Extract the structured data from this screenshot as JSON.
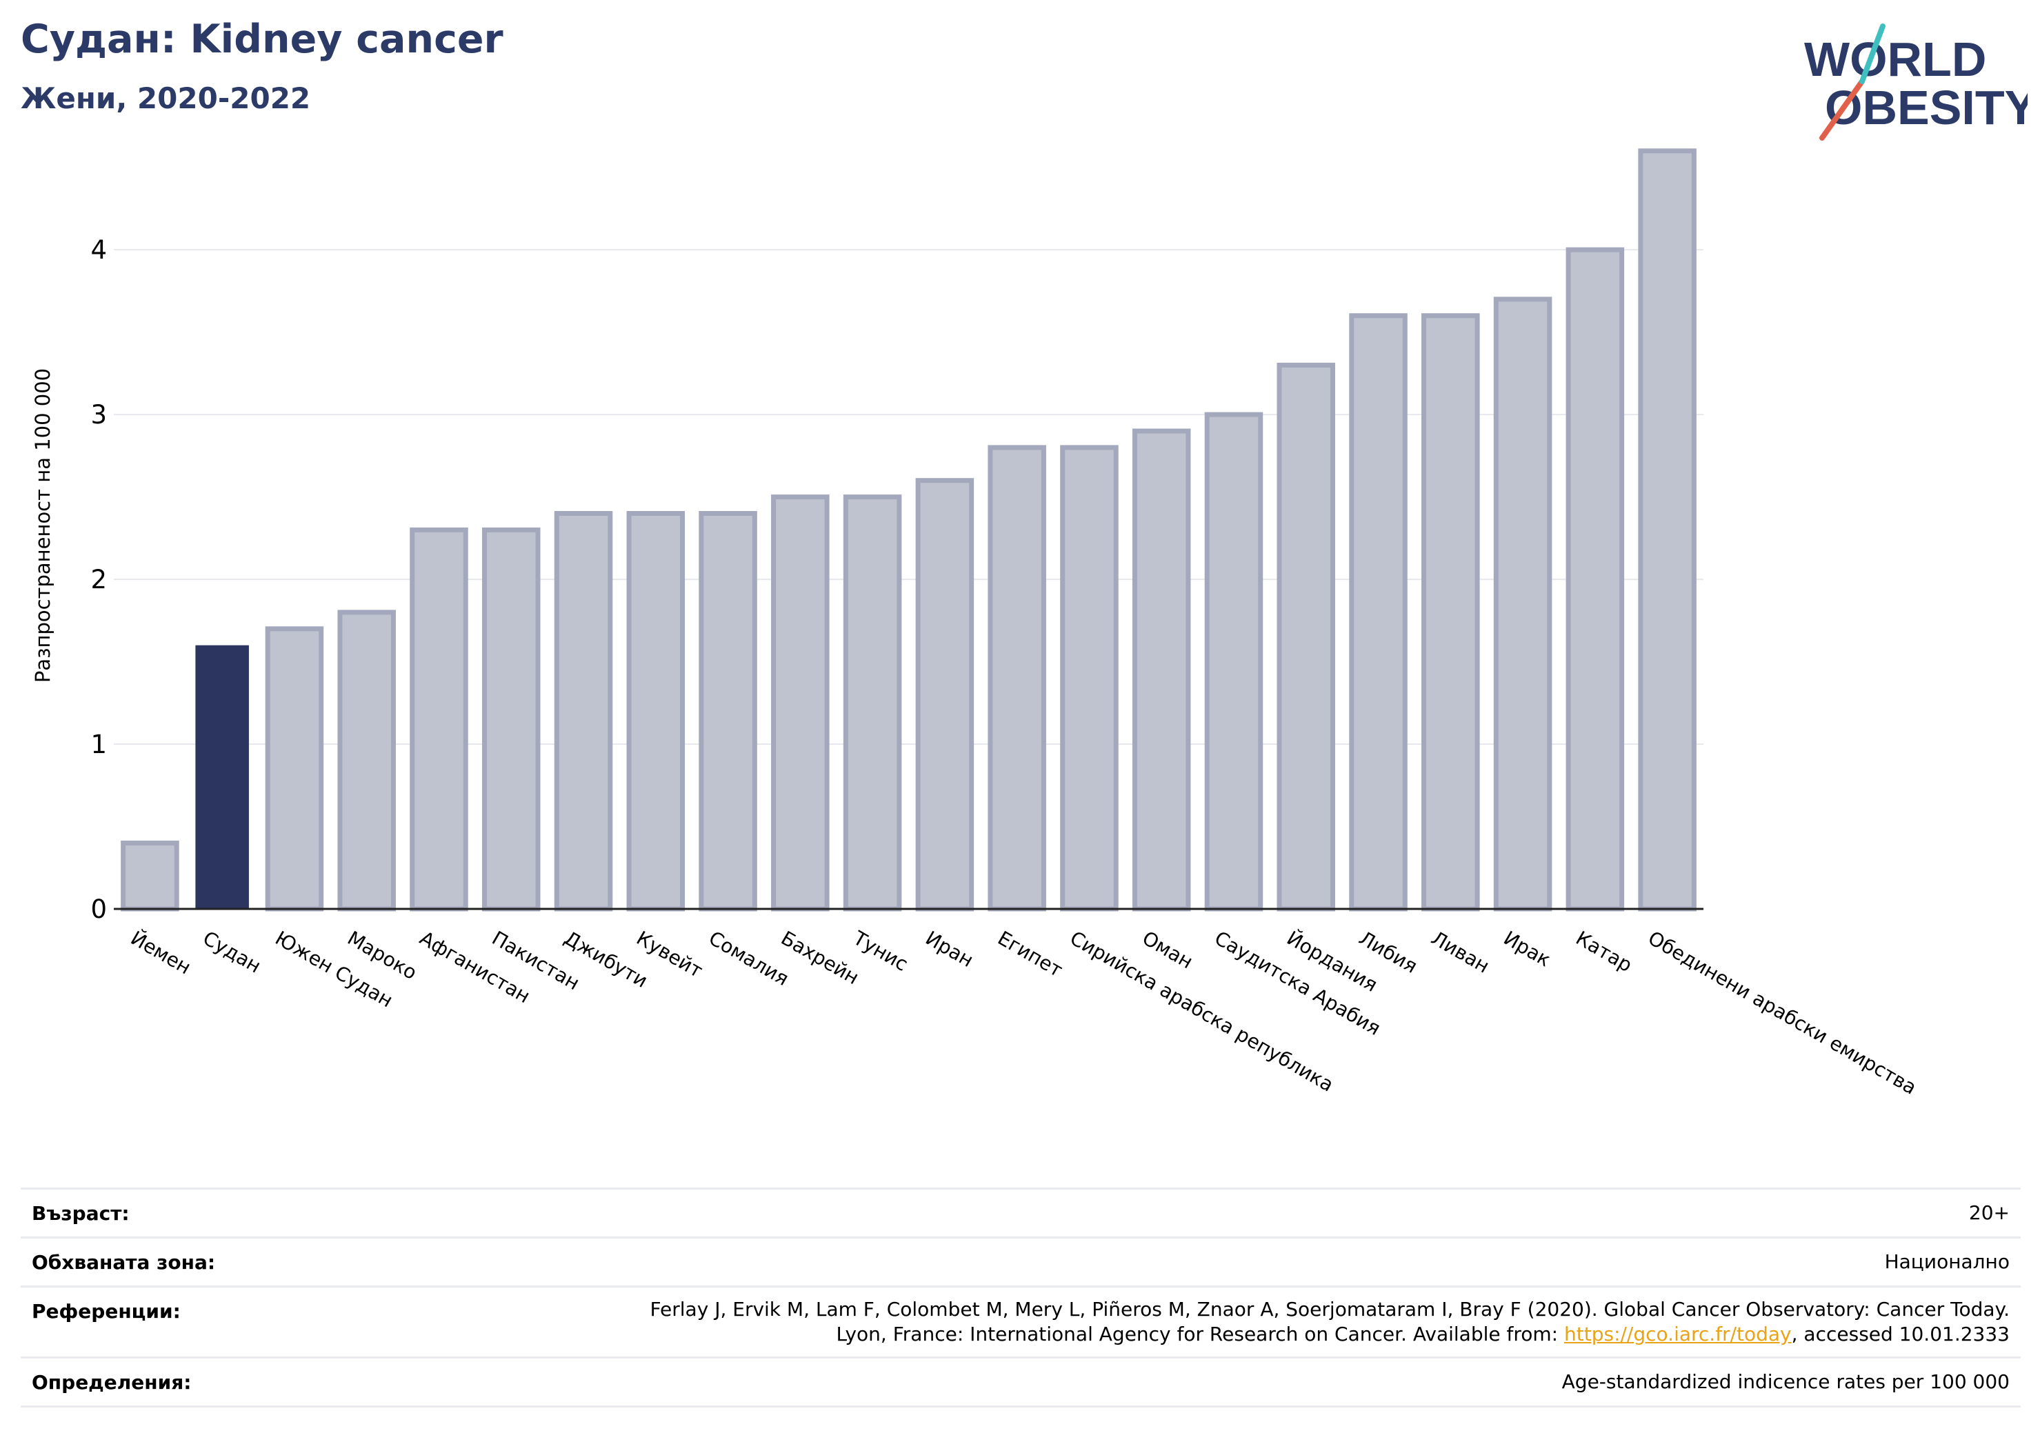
{
  "header": {
    "title": "Судан: Kidney cancer",
    "subtitle": "Жени, 2020-2022"
  },
  "logo": {
    "line1": "WORLD",
    "line2": "OBESITY",
    "colors": {
      "text": "#2b3a67",
      "slash_red": "#e0604a",
      "slash_teal": "#3fbfbf"
    }
  },
  "chart_data": {
    "type": "bar",
    "ylabel": "Разпространеност  на 100 000",
    "ylim": [
      0,
      4.8
    ],
    "yticks": [
      0,
      1,
      2,
      3,
      4
    ],
    "grid": true,
    "highlight_color": "#2b3560",
    "bar_color": "#bfc2cf",
    "bar_edge_color": "#a3a8bc",
    "categories": [
      "Йемен",
      "Судан",
      "Южен Судан",
      "Мароко",
      "Афганистан",
      "Пакистан",
      "Джибути",
      "Кувейт",
      "Сомалия",
      "Бахрейн",
      "Тунис",
      "Иран",
      "Египет",
      "Сирийска арабска република",
      "Оман",
      "Саудитска Арабия",
      "Йордания",
      "Либия",
      "Ливан",
      "Ирак",
      "Катар",
      "Обединени арабски емирства"
    ],
    "values": [
      0.4,
      1.6,
      1.7,
      1.8,
      2.3,
      2.3,
      2.4,
      2.4,
      2.4,
      2.5,
      2.5,
      2.6,
      2.8,
      2.8,
      2.9,
      3.0,
      3.3,
      3.6,
      3.6,
      3.7,
      4.0,
      4.6
    ],
    "highlight_index": 1
  },
  "meta": {
    "age_label": "Възраст:",
    "age_value": "20+",
    "area_label": "Обхваната зона:",
    "area_value": "Национално",
    "refs_label": "Референции:",
    "refs_line1": "Ferlay J, Ervik M, Lam F, Colombet M, Mery L, Piñeros M, Znaor A, Soerjomataram I, Bray F (2020). Global Cancer Observatory: Cancer Today.",
    "refs_line2_pre": "Lyon, France: International Agency for Research on Cancer. Available from: ",
    "refs_link": "https://gco.iarc.fr/today",
    "refs_line2_post": ", accessed 10.01.2333",
    "defs_label": "Определения:",
    "defs_value": "Age-standardized indicence rates per 100 000"
  }
}
